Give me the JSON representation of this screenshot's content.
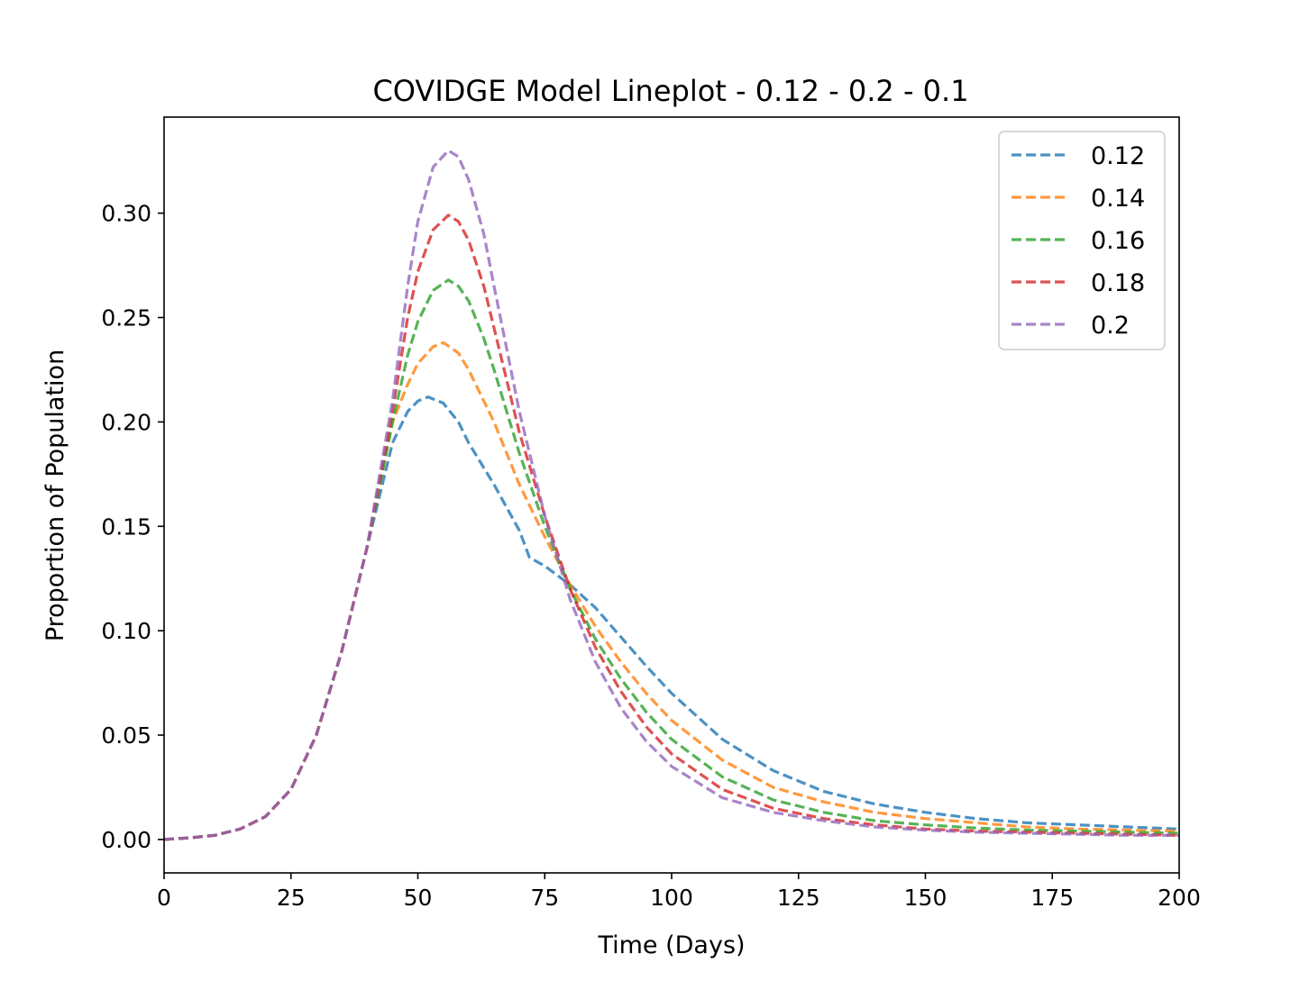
{
  "chart_data": {
    "type": "line",
    "title": "COVIDGE Model Lineplot - 0.12 - 0.2 - 0.1",
    "xlabel": "Time (Days)",
    "ylabel": "Proportion of Population",
    "xlim": [
      0,
      200
    ],
    "ylim": [
      -0.016,
      0.346
    ],
    "x_ticks": [
      0,
      25,
      50,
      75,
      100,
      125,
      150,
      175,
      200
    ],
    "x_tick_labels": [
      "0",
      "25",
      "50",
      "75",
      "100",
      "125",
      "150",
      "175",
      "200"
    ],
    "y_ticks": [
      0.0,
      0.05,
      0.1,
      0.15,
      0.2,
      0.25,
      0.3
    ],
    "y_tick_labels": [
      "0.00",
      "0.05",
      "0.10",
      "0.15",
      "0.20",
      "0.25",
      "0.30"
    ],
    "grid": false,
    "legend_position": "top-right",
    "line_style": "dashed",
    "series": [
      {
        "name": "0.12",
        "color": "#1f77b4",
        "x": [
          0,
          5,
          10,
          15,
          20,
          25,
          30,
          35,
          40,
          45,
          48,
          50,
          52,
          55,
          58,
          60,
          65,
          70,
          72,
          75,
          80,
          85,
          90,
          95,
          100,
          110,
          120,
          130,
          140,
          150,
          160,
          170,
          180,
          190,
          200
        ],
        "values": [
          0.0,
          0.0008,
          0.002,
          0.005,
          0.011,
          0.024,
          0.05,
          0.09,
          0.14,
          0.19,
          0.205,
          0.21,
          0.212,
          0.209,
          0.2,
          0.19,
          0.17,
          0.148,
          0.135,
          0.131,
          0.122,
          0.111,
          0.097,
          0.083,
          0.07,
          0.048,
          0.033,
          0.023,
          0.017,
          0.013,
          0.01,
          0.008,
          0.007,
          0.006,
          0.005
        ]
      },
      {
        "name": "0.14",
        "color": "#ff7f0e",
        "x": [
          0,
          5,
          10,
          15,
          20,
          25,
          30,
          35,
          40,
          45,
          48,
          50,
          53,
          55,
          58,
          60,
          65,
          70,
          75,
          80,
          85,
          90,
          95,
          100,
          110,
          120,
          130,
          140,
          150,
          160,
          170,
          180,
          190,
          200
        ],
        "values": [
          0.0,
          0.0008,
          0.002,
          0.005,
          0.011,
          0.024,
          0.05,
          0.09,
          0.14,
          0.2,
          0.218,
          0.228,
          0.236,
          0.238,
          0.233,
          0.225,
          0.2,
          0.17,
          0.145,
          0.122,
          0.102,
          0.085,
          0.07,
          0.057,
          0.038,
          0.025,
          0.018,
          0.013,
          0.01,
          0.008,
          0.006,
          0.005,
          0.0045,
          0.004
        ]
      },
      {
        "name": "0.16",
        "color": "#2ca02c",
        "x": [
          0,
          5,
          10,
          15,
          20,
          25,
          30,
          35,
          40,
          45,
          48,
          50,
          53,
          56,
          58,
          60,
          63,
          65,
          70,
          75,
          80,
          85,
          90,
          95,
          100,
          110,
          120,
          130,
          140,
          150,
          160,
          170,
          180,
          190,
          200
        ],
        "values": [
          0.0,
          0.0008,
          0.002,
          0.005,
          0.011,
          0.024,
          0.05,
          0.09,
          0.14,
          0.2,
          0.232,
          0.248,
          0.263,
          0.268,
          0.265,
          0.258,
          0.24,
          0.225,
          0.185,
          0.15,
          0.12,
          0.096,
          0.077,
          0.061,
          0.048,
          0.03,
          0.019,
          0.013,
          0.009,
          0.007,
          0.0055,
          0.0045,
          0.004,
          0.0035,
          0.003
        ]
      },
      {
        "name": "0.18",
        "color": "#d62728",
        "x": [
          0,
          5,
          10,
          15,
          20,
          25,
          30,
          35,
          40,
          45,
          48,
          50,
          53,
          56,
          58,
          60,
          63,
          65,
          70,
          75,
          80,
          85,
          90,
          95,
          100,
          110,
          120,
          130,
          140,
          150,
          160,
          170,
          180,
          190,
          200
        ],
        "values": [
          0.0,
          0.0008,
          0.002,
          0.005,
          0.011,
          0.024,
          0.05,
          0.09,
          0.14,
          0.205,
          0.25,
          0.272,
          0.292,
          0.299,
          0.296,
          0.287,
          0.265,
          0.245,
          0.195,
          0.155,
          0.12,
          0.092,
          0.071,
          0.054,
          0.041,
          0.024,
          0.015,
          0.01,
          0.007,
          0.005,
          0.004,
          0.0035,
          0.003,
          0.0025,
          0.002
        ]
      },
      {
        "name": "0.2",
        "color": "#9467bd",
        "x": [
          0,
          5,
          10,
          15,
          20,
          25,
          30,
          35,
          40,
          45,
          48,
          50,
          53,
          56,
          58,
          60,
          63,
          65,
          70,
          75,
          80,
          85,
          90,
          95,
          100,
          110,
          120,
          130,
          140,
          150,
          160,
          170,
          180,
          190,
          200
        ],
        "values": [
          0.0,
          0.0008,
          0.002,
          0.005,
          0.011,
          0.024,
          0.05,
          0.09,
          0.14,
          0.21,
          0.265,
          0.296,
          0.322,
          0.33,
          0.327,
          0.316,
          0.29,
          0.265,
          0.205,
          0.155,
          0.115,
          0.085,
          0.063,
          0.047,
          0.035,
          0.02,
          0.013,
          0.009,
          0.006,
          0.0045,
          0.0035,
          0.003,
          0.0025,
          0.002,
          0.002
        ]
      }
    ]
  }
}
